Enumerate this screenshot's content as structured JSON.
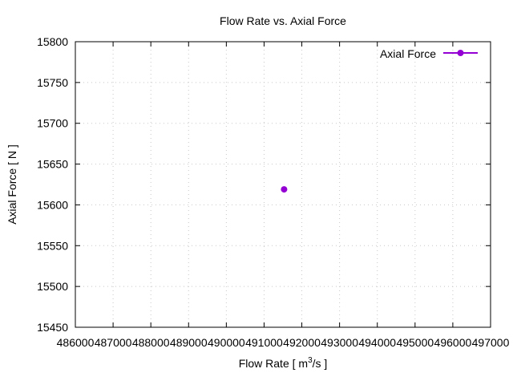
{
  "chart_data": {
    "type": "scatter",
    "title": "Flow Rate vs. Axial Force",
    "xlabel_main": "Flow Rate [ m",
    "xlabel_sup": "3",
    "xlabel_tail": "/s ]",
    "ylabel": "Axial Force [ N ]",
    "xlim": [
      486000,
      497000
    ],
    "ylim": [
      15450,
      15800
    ],
    "xticks": [
      486000,
      487000,
      488000,
      489000,
      490000,
      491000,
      492000,
      493000,
      494000,
      495000,
      496000,
      497000
    ],
    "yticks": [
      15450,
      15500,
      15550,
      15600,
      15650,
      15700,
      15750,
      15800
    ],
    "grid": true,
    "legend_position": "top-right",
    "series": [
      {
        "name": "Axial Force",
        "color": "#9400d3",
        "points": [
          {
            "x": 491530,
            "y": 15619
          }
        ]
      }
    ]
  }
}
